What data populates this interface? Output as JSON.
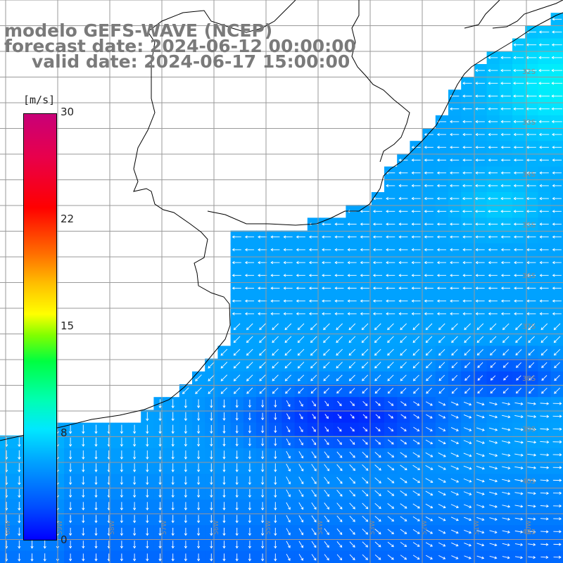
{
  "title": {
    "line1": "modelo GEFS-WAVE (NCEP)",
    "line2": "forecast date: 2024-06-12 00:00:00",
    "line3": "valid date: 2024-06-17 15:00:00"
  },
  "colorbar": {
    "unit": "[m/s]",
    "ticks": [
      "30",
      "22",
      "15",
      "8",
      "0"
    ],
    "range": [
      0,
      30
    ]
  },
  "lat_labels": [
    "32S",
    "33S",
    "34S",
    "35S",
    "36S",
    "37S",
    "38S",
    "39S",
    "40S",
    "41S"
  ],
  "lon_labels": [
    "60W",
    "59W",
    "58W",
    "57W",
    "56W",
    "55W",
    "54W",
    "53W",
    "52W",
    "51W",
    "50W"
  ],
  "wind": {
    "direction_north": {
      "description": "offshore, easterly winds",
      "speed_ms": 7
    },
    "direction_south": {
      "description": "northerly winds",
      "speed_ms": 5
    },
    "min_area_speed_ms": 3
  },
  "colors": {
    "land": "#ffffff",
    "coastline": "#000000",
    "grid": "#9a9a9a",
    "arrows": "#ffffff",
    "title": "#7a7a7a"
  }
}
